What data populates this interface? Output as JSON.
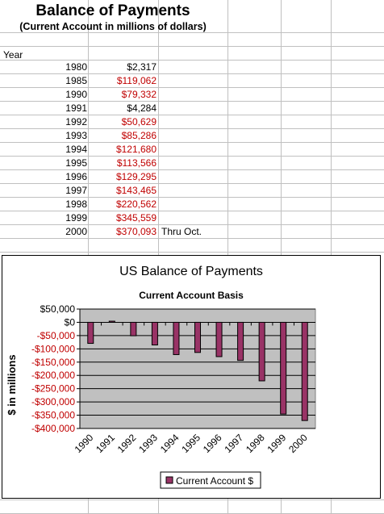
{
  "sheet": {
    "title": "Balance of Payments",
    "subtitle": "(Current Account in millions of dollars)",
    "year_header": "Year",
    "rows": [
      {
        "year": "1980",
        "value": "$2,317",
        "negative": false,
        "note": ""
      },
      {
        "year": "1985",
        "value": "$119,062",
        "negative": true,
        "note": ""
      },
      {
        "year": "1990",
        "value": "$79,332",
        "negative": true,
        "note": ""
      },
      {
        "year": "1991",
        "value": "$4,284",
        "negative": false,
        "note": ""
      },
      {
        "year": "1992",
        "value": "$50,629",
        "negative": true,
        "note": ""
      },
      {
        "year": "1993",
        "value": "$85,286",
        "negative": true,
        "note": ""
      },
      {
        "year": "1994",
        "value": "$121,680",
        "negative": true,
        "note": ""
      },
      {
        "year": "1995",
        "value": "$113,566",
        "negative": true,
        "note": ""
      },
      {
        "year": "1996",
        "value": "$129,295",
        "negative": true,
        "note": ""
      },
      {
        "year": "1997",
        "value": "$143,465",
        "negative": true,
        "note": ""
      },
      {
        "year": "1998",
        "value": "$220,562",
        "negative": true,
        "note": ""
      },
      {
        "year": "1999",
        "value": "$345,559",
        "negative": true,
        "note": ""
      },
      {
        "year": "2000",
        "value": "$370,093",
        "negative": true,
        "note": "Thru Oct."
      }
    ]
  },
  "colors": {
    "negative_text": "#c00000",
    "bar_fill": "#993366",
    "plot_background": "#c0c0c0"
  },
  "chart_data": {
    "type": "bar",
    "title": "US Balance of Payments",
    "subtitle": "Current Account Basis",
    "ylabel": "$ in millions",
    "xlabel": "",
    "categories": [
      "1990",
      "1991",
      "1992",
      "1993",
      "1994",
      "1995",
      "1996",
      "1997",
      "1998",
      "1999",
      "2000"
    ],
    "series": [
      {
        "name": "Current Account $",
        "values": [
          -79332,
          4284,
          -50629,
          -85286,
          -121680,
          -113566,
          -129295,
          -143465,
          -220562,
          -345559,
          -370093
        ]
      }
    ],
    "ylim": [
      -400000,
      50000
    ],
    "yticks": [
      50000,
      0,
      -50000,
      -100000,
      -150000,
      -200000,
      -250000,
      -300000,
      -350000,
      -400000
    ],
    "ytick_labels": [
      "$50,000",
      "$0",
      "-$50,000",
      "-$100,000",
      "-$150,000",
      "-$200,000",
      "-$250,000",
      "-$300,000",
      "-$350,000",
      "-$400,000"
    ],
    "negative_labels_red": true,
    "grid": true,
    "legend_position": "bottom"
  }
}
